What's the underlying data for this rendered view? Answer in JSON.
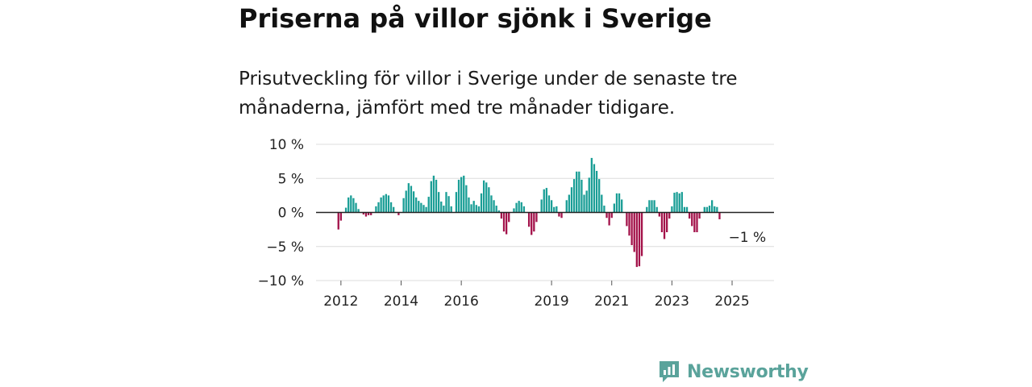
{
  "title": "Priserna på villor sjönk i Sverige",
  "subtitle": "Prisutveckling för villor i Sverige under de senaste tre månaderna, jämfört med tre månader tidigare.",
  "brand": {
    "name": "Newsworthy",
    "icon": "bar-chart-speech-icon",
    "color": "#5aa39b"
  },
  "colors": {
    "positive": "#1a9e96",
    "negative": "#a3124a",
    "zero_line": "#222222",
    "grid": "#dcdcdc"
  },
  "chart_data": {
    "type": "bar",
    "title": "Priserna på villor sjönk i Sverige",
    "ylabel": "",
    "xlabel": "",
    "ylim": [
      -10,
      10
    ],
    "x_start": "2011-12",
    "x_step": "month",
    "x_ticks": [
      {
        "label": "2012",
        "index": 1
      },
      {
        "label": "2014",
        "index": 25
      },
      {
        "label": "2016",
        "index": 49
      },
      {
        "label": "2019",
        "index": 85
      },
      {
        "label": "2021",
        "index": 109
      },
      {
        "label": "2023",
        "index": 133
      },
      {
        "label": "2025",
        "index": 157
      }
    ],
    "y_ticks": [
      {
        "label": "10 %",
        "value": 10
      },
      {
        "label": "5 %",
        "value": 5
      },
      {
        "label": "0 %",
        "value": 0
      },
      {
        "label": "−5 %",
        "value": -5
      },
      {
        "label": "−10 %",
        "value": -10
      }
    ],
    "annotation": {
      "label": "−1 %",
      "index": 162,
      "value": -1
    },
    "values": [
      -2.5,
      -1.2,
      null,
      0.7,
      2.2,
      2.5,
      2.1,
      1.4,
      0.5,
      null,
      -0.3,
      -0.6,
      -0.4,
      -0.4,
      null,
      0.9,
      1.5,
      2.2,
      2.5,
      2.7,
      2.5,
      1.5,
      0.8,
      null,
      -0.4,
      null,
      2.1,
      3.2,
      4.3,
      3.9,
      3.1,
      2.2,
      1.7,
      1.4,
      1.1,
      0.8,
      2.3,
      4.6,
      5.4,
      4.8,
      3.0,
      1.6,
      1.0,
      3.0,
      2.4,
      0.9,
      null,
      3.0,
      4.8,
      5.2,
      5.4,
      4.0,
      2.2,
      1.2,
      1.7,
      1.1,
      0.9,
      2.8,
      4.7,
      4.4,
      3.7,
      2.5,
      1.8,
      1.0,
      0.3,
      -0.9,
      -2.8,
      -3.2,
      -1.4,
      null,
      0.6,
      1.4,
      1.7,
      1.5,
      0.9,
      null,
      -2.1,
      -3.3,
      -2.8,
      -1.4,
      null,
      1.9,
      3.4,
      3.6,
      2.5,
      1.8,
      0.8,
      0.9,
      -0.6,
      -0.8,
      null,
      1.8,
      2.6,
      3.7,
      4.9,
      6.0,
      6.0,
      4.8,
      2.6,
      3.2,
      5.1,
      8.0,
      7.1,
      6.1,
      4.9,
      2.6,
      1.0,
      -0.8,
      -1.9,
      -0.8,
      1.3,
      2.8,
      2.8,
      1.9,
      null,
      -2.0,
      -3.4,
      -4.8,
      -5.8,
      -8.0,
      -7.9,
      -6.4,
      null,
      0.8,
      1.8,
      1.8,
      1.8,
      0.8,
      -0.6,
      -2.9,
      -3.9,
      -2.9,
      -0.9,
      0.9,
      2.9,
      3.0,
      2.8,
      3.0,
      0.8,
      0.8,
      -0.9,
      -2.0,
      -2.9,
      -2.9,
      -0.9,
      null,
      0.8,
      0.8,
      1.0,
      1.8,
      0.9,
      0.8,
      -1.0
    ]
  }
}
